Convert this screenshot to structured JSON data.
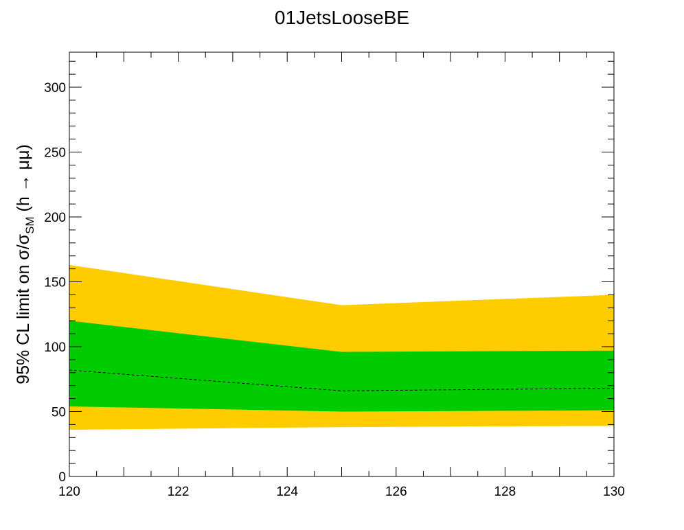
{
  "chart_data": {
    "type": "area",
    "title": "01JetsLooseBE",
    "xlabel": "",
    "ylabel_main": "95% CL limit on σ/σ",
    "ylabel_sub": "SM",
    "ylabel_tail": " (h → μμ)",
    "xlim": [
      120,
      130
    ],
    "ylim": [
      0,
      327
    ],
    "x_ticks": [
      120,
      122,
      124,
      126,
      128,
      130
    ],
    "y_ticks": [
      0,
      50,
      100,
      150,
      200,
      250,
      300
    ],
    "x": [
      120,
      125,
      130
    ],
    "expected": [
      82,
      66,
      68
    ],
    "band_1sigma": {
      "low": [
        54,
        50,
        51
      ],
      "high": [
        120,
        96,
        97
      ]
    },
    "band_2sigma": {
      "low": [
        36,
        38,
        39
      ],
      "high": [
        163,
        132,
        140
      ]
    },
    "colors": {
      "band_1sigma": "#00cc00",
      "band_2sigma": "#ffcc00",
      "expected": "#000000"
    }
  }
}
